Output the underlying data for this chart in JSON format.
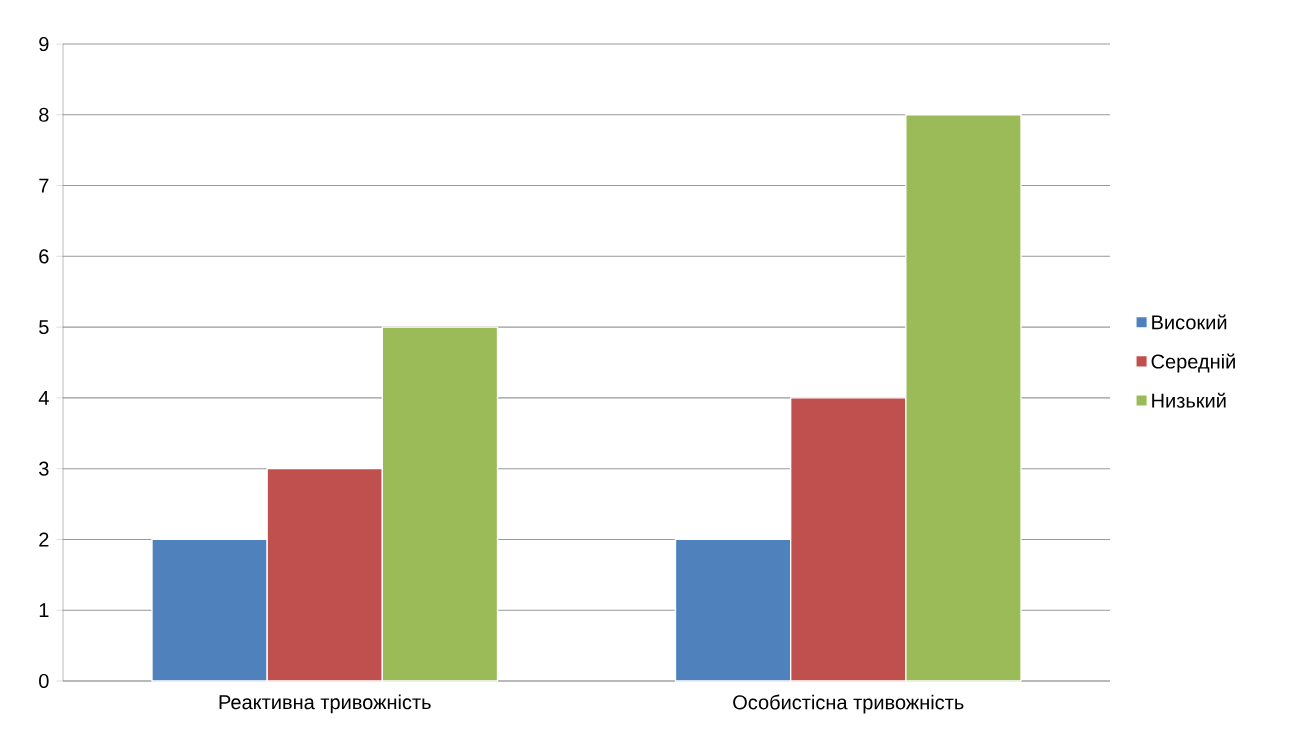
{
  "chart_data": {
    "type": "bar",
    "categories": [
      "Реактивна тривожність",
      "Особистісна тривожність"
    ],
    "series": [
      {
        "name": "Високий",
        "color": "#4f81bd",
        "values": [
          2,
          2
        ]
      },
      {
        "name": "Середній",
        "color": "#c0504d",
        "values": [
          3,
          4
        ]
      },
      {
        "name": "Низький",
        "color": "#9bbb59",
        "values": [
          5,
          8
        ]
      }
    ],
    "ylim": [
      0,
      9
    ],
    "yticks": [
      0,
      1,
      2,
      3,
      4,
      5,
      6,
      7,
      8,
      9
    ],
    "grid": "y",
    "legend": "right"
  }
}
